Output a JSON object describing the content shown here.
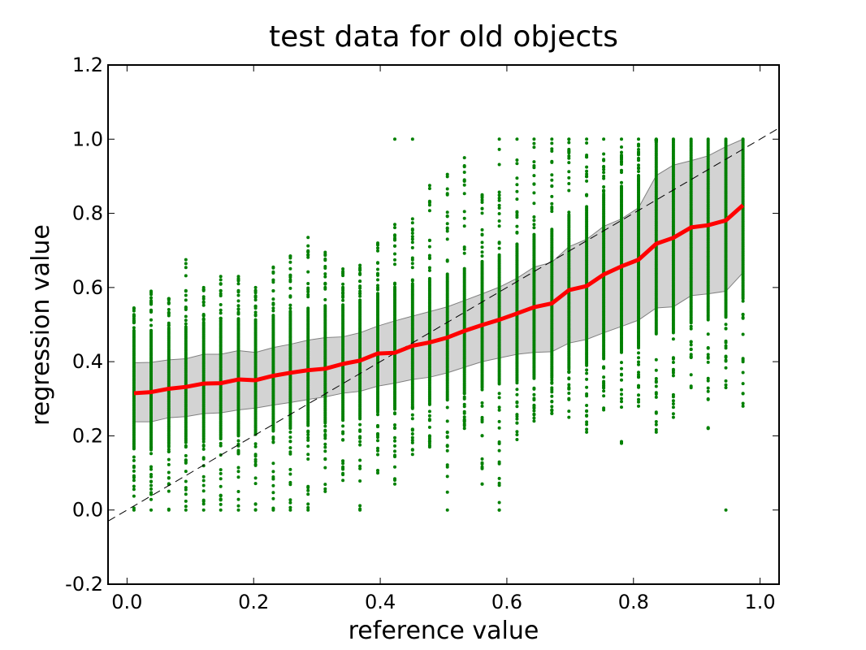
{
  "chart_data": {
    "type": "scatter",
    "title": "test data for old objects",
    "xlabel": "reference value",
    "ylabel": "regression value",
    "xlim": [
      -0.03,
      1.03
    ],
    "ylim": [
      -0.2,
      1.2
    ],
    "x_ticks": [
      "0.0",
      "0.2",
      "0.4",
      "0.6",
      "0.8",
      "1.0"
    ],
    "y_ticks": [
      "-0.2",
      "0.0",
      "0.2",
      "0.4",
      "0.6",
      "0.8",
      "1.0",
      "1.2"
    ],
    "grid": false,
    "legend": "none",
    "colors": {
      "scatter": "#008000",
      "mean_line": "#ff0000",
      "band_fill": "#d3d3d3",
      "band_edge": "#808080",
      "identity_line": "#000000"
    },
    "identity_line": {
      "x": [
        -0.03,
        1.03
      ],
      "y": [
        -0.03,
        1.03
      ],
      "style": "dashed"
    },
    "bin_x": [
      0.011,
      0.038,
      0.066,
      0.093,
      0.121,
      0.148,
      0.176,
      0.203,
      0.231,
      0.258,
      0.286,
      0.313,
      0.341,
      0.368,
      0.396,
      0.423,
      0.451,
      0.478,
      0.506,
      0.533,
      0.561,
      0.588,
      0.616,
      0.643,
      0.671,
      0.698,
      0.726,
      0.753,
      0.781,
      0.808,
      0.836,
      0.863,
      0.891,
      0.918,
      0.946,
      0.973
    ],
    "mean": [
      0.315,
      0.318,
      0.327,
      0.332,
      0.341,
      0.342,
      0.352,
      0.35,
      0.362,
      0.37,
      0.377,
      0.381,
      0.394,
      0.403,
      0.422,
      0.424,
      0.443,
      0.452,
      0.465,
      0.483,
      0.499,
      0.513,
      0.53,
      0.547,
      0.557,
      0.593,
      0.604,
      0.635,
      0.657,
      0.675,
      0.718,
      0.734,
      0.762,
      0.768,
      0.781,
      0.822
    ],
    "band_upper": [
      0.397,
      0.398,
      0.405,
      0.408,
      0.42,
      0.42,
      0.43,
      0.425,
      0.438,
      0.447,
      0.458,
      0.465,
      0.467,
      0.478,
      0.496,
      0.51,
      0.523,
      0.535,
      0.548,
      0.565,
      0.583,
      0.601,
      0.625,
      0.655,
      0.668,
      0.71,
      0.73,
      0.765,
      0.785,
      0.815,
      0.902,
      0.93,
      0.942,
      0.955,
      0.98,
      1.0
    ],
    "band_lower": [
      0.238,
      0.238,
      0.249,
      0.252,
      0.26,
      0.262,
      0.27,
      0.275,
      0.283,
      0.29,
      0.298,
      0.305,
      0.315,
      0.32,
      0.334,
      0.342,
      0.352,
      0.358,
      0.37,
      0.385,
      0.4,
      0.41,
      0.42,
      0.425,
      0.427,
      0.45,
      0.46,
      0.478,
      0.495,
      0.512,
      0.545,
      0.548,
      0.578,
      0.583,
      0.59,
      0.64
    ],
    "scatter_max": [
      0.545,
      0.59,
      0.57,
      0.675,
      0.6,
      0.63,
      0.63,
      0.6,
      0.655,
      0.685,
      0.735,
      0.695,
      0.65,
      0.66,
      0.72,
      0.77,
      0.785,
      0.875,
      0.905,
      0.95,
      0.85,
      1.0,
      1.0,
      1.0,
      1.0,
      1.0,
      1.0,
      1.0,
      1.0,
      1.0,
      1.0,
      1.0,
      1.0,
      1.0,
      1.0,
      1.0
    ],
    "scatter_min": [
      0.0,
      0.0,
      0.0,
      0.0,
      0.0,
      0.0,
      0.0,
      0.0,
      0.0,
      0.0,
      0.0,
      0.05,
      0.08,
      0.0,
      0.1,
      0.07,
      0.15,
      0.17,
      0.0,
      0.22,
      0.07,
      0.0,
      0.19,
      0.24,
      0.26,
      0.25,
      0.21,
      0.27,
      0.18,
      0.28,
      0.21,
      0.25,
      0.33,
      0.22,
      0.33,
      0.28
    ],
    "outliers": [
      {
        "x": 0.423,
        "y": 1.0
      },
      {
        "x": 0.451,
        "y": 1.0
      },
      {
        "x": 0.588,
        "y": 0.16
      },
      {
        "x": 0.588,
        "y": 0.0
      },
      {
        "x": 0.561,
        "y": 0.07
      },
      {
        "x": 0.946,
        "y": 0.0
      },
      {
        "x": 0.918,
        "y": 0.22
      }
    ]
  }
}
